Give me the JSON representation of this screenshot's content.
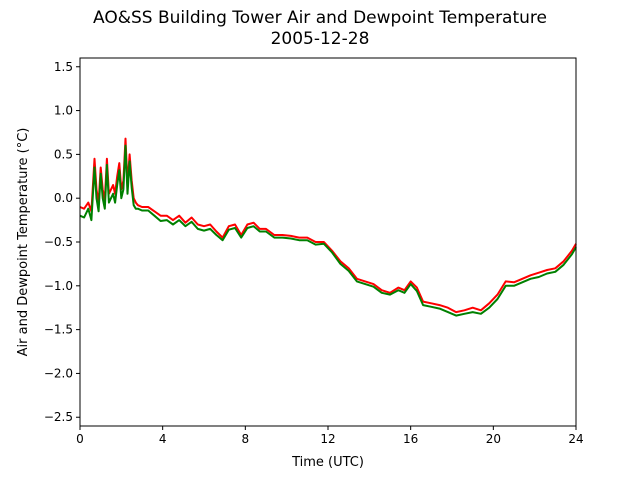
{
  "chart_data": {
    "type": "line",
    "title": "AO&SS Building Tower Air and Dewpoint Temperature",
    "subtitle": "2005-12-28",
    "xlabel": "Time (UTC)",
    "ylabel": "Air and Dewpoint Temperature (°C)",
    "xlim": [
      0,
      24
    ],
    "ylim": [
      -2.6,
      1.6
    ],
    "xticks": [
      0,
      4,
      8,
      12,
      16,
      20,
      24
    ],
    "yticks": [
      -2.5,
      -2.0,
      -1.5,
      -1.0,
      -0.5,
      0.0,
      0.5,
      1.0,
      1.5
    ],
    "ytick_labels": [
      "−2.5",
      "−2.0",
      "−1.5",
      "−1.0",
      "−0.5",
      "0.0",
      "0.5",
      "1.0",
      "1.5"
    ],
    "grid": false,
    "series": [
      {
        "color": "#ff0000",
        "x": [
          0,
          0.2,
          0.4,
          0.55,
          0.7,
          0.8,
          0.9,
          1.0,
          1.1,
          1.2,
          1.3,
          1.4,
          1.5,
          1.6,
          1.7,
          1.8,
          1.9,
          2.0,
          2.1,
          2.2,
          2.3,
          2.4,
          2.5,
          2.6,
          2.7,
          2.8,
          3.0,
          3.3,
          3.6,
          3.9,
          4.2,
          4.5,
          4.8,
          5.1,
          5.4,
          5.7,
          6.0,
          6.3,
          6.6,
          6.9,
          7.2,
          7.5,
          7.8,
          8.1,
          8.4,
          8.7,
          9.0,
          9.4,
          9.8,
          10.2,
          10.6,
          11.0,
          11.4,
          11.8,
          12.2,
          12.6,
          13.0,
          13.4,
          13.8,
          14.2,
          14.6,
          15.0,
          15.4,
          15.7,
          16.0,
          16.3,
          16.6,
          17.0,
          17.4,
          17.8,
          18.2,
          18.6,
          19.0,
          19.4,
          19.8,
          20.2,
          20.6,
          21.0,
          21.4,
          21.8,
          22.2,
          22.6,
          23.0,
          23.4,
          23.8,
          24.0
        ],
        "y": [
          -0.1,
          -0.12,
          -0.05,
          -0.15,
          0.45,
          0.1,
          -0.05,
          0.35,
          0.1,
          -0.02,
          0.45,
          0.05,
          0.1,
          0.15,
          0.05,
          0.25,
          0.4,
          0.1,
          0.2,
          0.68,
          0.15,
          0.5,
          0.2,
          0.0,
          -0.05,
          -0.08,
          -0.1,
          -0.1,
          -0.15,
          -0.2,
          -0.2,
          -0.25,
          -0.2,
          -0.28,
          -0.22,
          -0.3,
          -0.32,
          -0.3,
          -0.38,
          -0.45,
          -0.32,
          -0.3,
          -0.42,
          -0.3,
          -0.28,
          -0.35,
          -0.35,
          -0.42,
          -0.42,
          -0.43,
          -0.45,
          -0.45,
          -0.5,
          -0.5,
          -0.6,
          -0.72,
          -0.8,
          -0.92,
          -0.95,
          -0.98,
          -1.05,
          -1.08,
          -1.02,
          -1.05,
          -0.95,
          -1.02,
          -1.18,
          -1.2,
          -1.22,
          -1.25,
          -1.3,
          -1.28,
          -1.25,
          -1.28,
          -1.2,
          -1.1,
          -0.95,
          -0.96,
          -0.92,
          -0.88,
          -0.85,
          -0.82,
          -0.8,
          -0.72,
          -0.6,
          -0.52
        ]
      },
      {
        "color": "#008000",
        "x": [
          0,
          0.2,
          0.4,
          0.55,
          0.7,
          0.8,
          0.9,
          1.0,
          1.1,
          1.2,
          1.3,
          1.4,
          1.5,
          1.6,
          1.7,
          1.8,
          1.9,
          2.0,
          2.1,
          2.2,
          2.3,
          2.4,
          2.5,
          2.6,
          2.7,
          2.8,
          3.0,
          3.3,
          3.6,
          3.9,
          4.2,
          4.5,
          4.8,
          5.1,
          5.4,
          5.7,
          6.0,
          6.3,
          6.6,
          6.9,
          7.2,
          7.5,
          7.8,
          8.1,
          8.4,
          8.7,
          9.0,
          9.4,
          9.8,
          10.2,
          10.6,
          11.0,
          11.4,
          11.8,
          12.2,
          12.6,
          13.0,
          13.4,
          13.8,
          14.2,
          14.6,
          15.0,
          15.4,
          15.7,
          16.0,
          16.3,
          16.6,
          17.0,
          17.4,
          17.8,
          18.2,
          18.6,
          19.0,
          19.4,
          19.8,
          20.2,
          20.6,
          21.0,
          21.4,
          21.8,
          22.2,
          22.6,
          23.0,
          23.4,
          23.8,
          24.0
        ],
        "y": [
          -0.2,
          -0.22,
          -0.12,
          -0.25,
          0.35,
          0.0,
          -0.15,
          0.28,
          0.0,
          -0.12,
          0.38,
          -0.05,
          0.0,
          0.05,
          -0.05,
          0.15,
          0.32,
          0.0,
          0.1,
          0.6,
          0.05,
          0.42,
          0.12,
          -0.08,
          -0.12,
          -0.12,
          -0.14,
          -0.14,
          -0.2,
          -0.26,
          -0.25,
          -0.3,
          -0.25,
          -0.32,
          -0.27,
          -0.35,
          -0.37,
          -0.35,
          -0.42,
          -0.48,
          -0.36,
          -0.34,
          -0.45,
          -0.34,
          -0.32,
          -0.38,
          -0.38,
          -0.45,
          -0.45,
          -0.46,
          -0.48,
          -0.48,
          -0.53,
          -0.52,
          -0.62,
          -0.75,
          -0.83,
          -0.95,
          -0.98,
          -1.01,
          -1.08,
          -1.1,
          -1.05,
          -1.08,
          -0.98,
          -1.06,
          -1.22,
          -1.24,
          -1.26,
          -1.3,
          -1.34,
          -1.32,
          -1.3,
          -1.32,
          -1.25,
          -1.15,
          -1.0,
          -1.0,
          -0.96,
          -0.92,
          -0.9,
          -0.86,
          -0.84,
          -0.76,
          -0.64,
          -0.56
        ]
      }
    ]
  }
}
